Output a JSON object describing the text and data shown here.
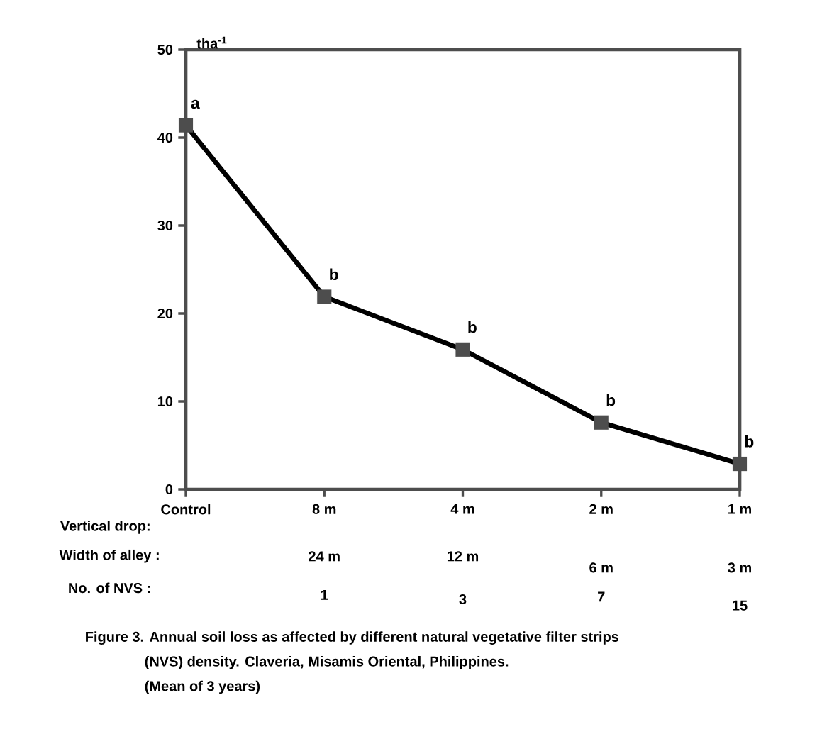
{
  "chart_data": {
    "type": "line",
    "categories": [
      "Control",
      "8 m",
      "4 m",
      "2 m",
      "1 m"
    ],
    "values": [
      41.4,
      21.9,
      15.9,
      7.6,
      2.9
    ],
    "color": "#000000",
    "marker": "square",
    "line_style": "solid",
    "ylim": [
      0,
      50
    ],
    "yticks": [
      0,
      10,
      20,
      30,
      40,
      50
    ],
    "ylabel": "tha$^{-1}$",
    "grid": false,
    "annotations": [
      {
        "text": "a",
        "x": "Control",
        "y": 41.4
      },
      {
        "text": "b",
        "x": "8 m",
        "y": 21.9
      },
      {
        "text": "b",
        "x": "4 m",
        "y": 15.9
      },
      {
        "text": "b",
        "x": "2 m",
        "y": 7.6
      },
      {
        "text": "b",
        "x": "1 m",
        "y": 2.9
      },
      "Vertical drop:",
      "Width of alley :",
      "No. of NVS :",
      "24 m",
      "12 m",
      "6 m",
      "3 m",
      "1",
      "3",
      "7",
      "15",
      "Figure 3.  Annual soil loss as affected by different natural vegetative filter strips",
      "(NVS) density. Claveria, Misamis Oriental, Philippines.",
      "(Mean of 3 years)"
    ]
  }
}
